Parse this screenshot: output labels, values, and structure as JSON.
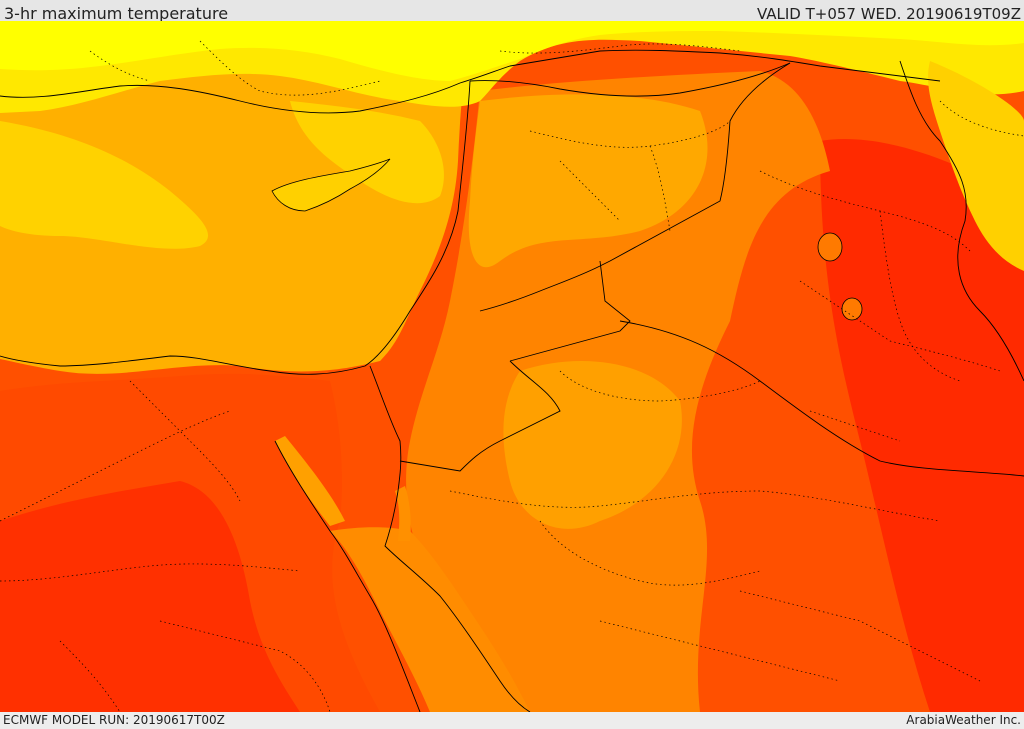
{
  "header": {
    "title": "3-hr maximum temperature",
    "valid": "VALID T+057 WED. 20190619T09Z"
  },
  "footer": {
    "model_run": "ECMWF MODEL RUN: 20190617T00Z",
    "credit": "ArabiaWeather Inc."
  },
  "map": {
    "palette": {
      "yellow": "#ffff00",
      "gold": "#ffd700",
      "amber": "#ffb000",
      "orange": "#ff8c00",
      "dark_orange": "#ff6a00",
      "red_orange": "#ff4500",
      "red": "#ff2000",
      "water_lake": "#ff7a00",
      "border_line": "#000000"
    }
  }
}
